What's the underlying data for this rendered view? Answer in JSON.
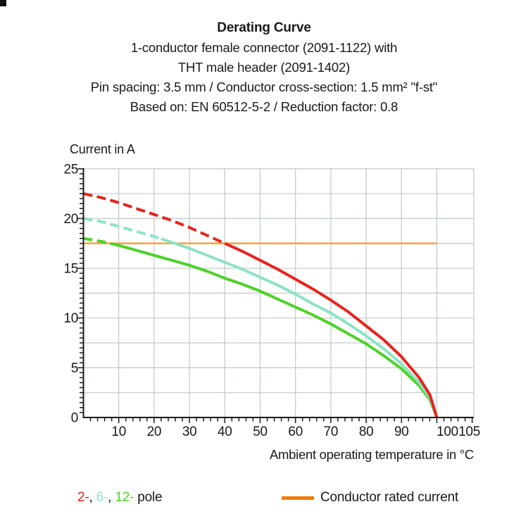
{
  "header": {
    "title": "Derating Curve",
    "lines": [
      "1-conductor female connector (2091-1122) with",
      "THT male header (2091-1402)",
      "Pin spacing: 3.5 mm / Conductor cross-section: 1.5 mm² \"f-st\"",
      "Based on: EN 60512-5-2 / Reduction factor: 0.8"
    ]
  },
  "colors": {
    "text": "#1a1a1a",
    "grid": "#bfc9c8",
    "axis": "#1a1a1a",
    "pole2": "#e8231d",
    "pole6": "#8ce3c6",
    "pole12": "#4cd228",
    "rated_line": "#f9a640",
    "rated_swatch": "#ef7d00"
  },
  "chart_data": {
    "type": "line",
    "title": "Derating Curve",
    "xlabel": "Ambient operating temperature in °C",
    "ylabel": "Current in A",
    "xlim": [
      0,
      110.5
    ],
    "ylim": [
      0,
      25
    ],
    "grid": {
      "x_step": 10,
      "y_step": 2.5,
      "x_minor_tick": 2,
      "y_minor_tick": 0.5
    },
    "x_ticks": [
      {
        "t": 10,
        "label": "10"
      },
      {
        "t": 20,
        "label": "20"
      },
      {
        "t": 30,
        "label": "30"
      },
      {
        "t": 40,
        "label": "40"
      },
      {
        "t": 50,
        "label": "50"
      },
      {
        "t": 60,
        "label": "60"
      },
      {
        "t": 70,
        "label": "70"
      },
      {
        "t": 80,
        "label": "80"
      },
      {
        "t": 90,
        "label": "90"
      },
      {
        "t": 100,
        "label": "100",
        "dx": 15
      },
      {
        "t": 105,
        "label": "105",
        "dx": 21
      }
    ],
    "y_ticks": [
      {
        "a": 0,
        "label": "0"
      },
      {
        "a": 5,
        "label": "5"
      },
      {
        "a": 10,
        "label": "10"
      },
      {
        "a": 15,
        "label": "15"
      },
      {
        "a": 20,
        "label": "20"
      },
      {
        "a": 25,
        "label": "25"
      }
    ],
    "rated_current": {
      "value": 17.5,
      "x_range": [
        0,
        100
      ],
      "label": "Conductor rated current",
      "color": "#f9a640"
    },
    "x": [
      0,
      5,
      10,
      15,
      20,
      25,
      30,
      35,
      40,
      45,
      50,
      55,
      60,
      65,
      70,
      75,
      80,
      85,
      90,
      95,
      98,
      100
    ],
    "series": [
      {
        "name": "12-pole",
        "color": "#4cd228",
        "dash_until": 8,
        "values": [
          18,
          17.7,
          17.3,
          16.8,
          16.3,
          15.8,
          15.3,
          14.7,
          14.0,
          13.4,
          12.7,
          11.9,
          11.1,
          10.3,
          9.4,
          8.4,
          7.4,
          6.2,
          4.9,
          3.2,
          1.8,
          0
        ]
      },
      {
        "name": "6-pole",
        "color": "#8ce3c6",
        "dash_until": 22,
        "values": [
          20,
          19.7,
          19.2,
          18.7,
          18.2,
          17.6,
          17.0,
          16.3,
          15.6,
          14.9,
          14.1,
          13.3,
          12.4,
          11.4,
          10.5,
          9.4,
          8.2,
          6.9,
          5.4,
          3.5,
          2.0,
          0
        ]
      },
      {
        "name": "2-pole",
        "color": "#e8231d",
        "dash_until": 40,
        "values": [
          22.5,
          22.1,
          21.6,
          21.0,
          20.4,
          19.8,
          19.1,
          18.3,
          17.5,
          16.7,
          15.8,
          14.9,
          13.9,
          12.9,
          11.8,
          10.6,
          9.2,
          7.8,
          6.1,
          4.0,
          2.3,
          0
        ]
      }
    ]
  },
  "legend": {
    "poles": {
      "parts": [
        {
          "label": "2-",
          "color": "#e8231d"
        },
        {
          "label": ", ",
          "color": "#1a1a1a"
        },
        {
          "label": "6-",
          "color": "#8ce3c6"
        },
        {
          "label": ", ",
          "color": "#1a1a1a"
        },
        {
          "label": "12-",
          "color": "#4cd228"
        },
        {
          "label": " pole",
          "color": "#1a1a1a"
        }
      ]
    },
    "rated": {
      "label": "Conductor rated current",
      "swatch_color": "#ef7d00"
    }
  }
}
